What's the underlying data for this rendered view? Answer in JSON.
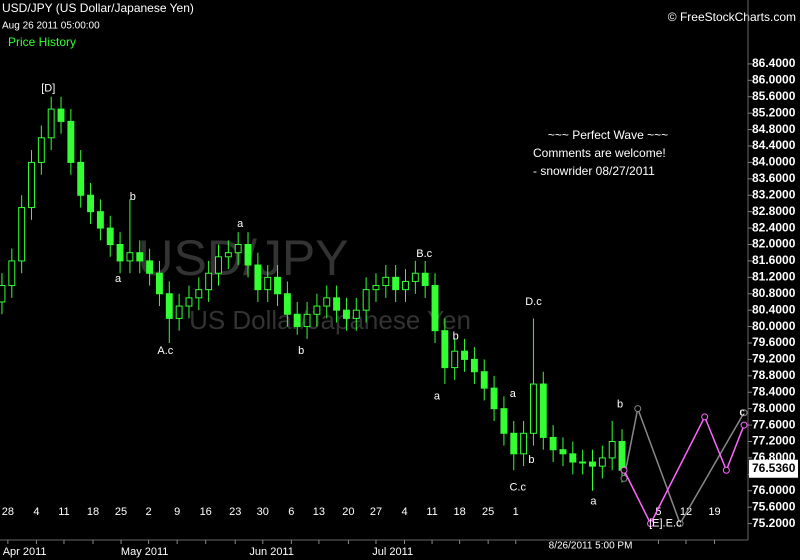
{
  "header": {
    "symbol": "USD/JPY (US Dollar/Japanese Yen)",
    "timestamp": "Aug 26 2011 05:00:00",
    "panel": "Price History",
    "brand": "© FreeStockCharts.com"
  },
  "watermark": {
    "symbol": "USD/JPY",
    "name": "US Dollar/Japanese Yen"
  },
  "comment": [
    "~~~ Perfect Wave ~~~",
    "Comments are welcome!",
    "- snowrider  08/27/2011"
  ],
  "chart_data": {
    "type": "candlestick",
    "color": "#33ff33",
    "open": [
      80.6,
      81.0,
      81.6,
      82.9,
      84.0,
      84.6,
      85.3,
      85.0,
      84.0,
      83.2,
      82.8,
      82.4,
      82.0,
      81.6,
      81.8,
      81.6,
      81.3,
      80.8,
      80.2,
      80.5,
      80.7,
      80.9,
      81.3,
      81.7,
      81.8,
      82.0,
      81.5,
      80.9,
      81.2,
      80.8,
      80.3,
      80.0,
      80.3,
      80.5,
      80.7,
      80.4,
      80.2,
      80.4,
      80.9,
      81.0,
      81.2,
      80.9,
      81.1,
      81.3,
      81.0,
      79.9,
      79.0,
      79.4,
      79.2,
      78.9,
      78.5,
      78.0,
      77.4,
      76.9,
      77.4,
      78.6,
      77.3,
      77.0,
      76.9,
      76.7,
      76.7,
      76.6,
      76.8,
      77.2
    ],
    "high": [
      81.3,
      81.9,
      83.2,
      84.3,
      84.9,
      85.6,
      85.6,
      85.3,
      84.3,
      83.5,
      83.1,
      82.7,
      82.3,
      83.1,
      82.1,
      81.9,
      81.6,
      81.1,
      80.8,
      81.0,
      81.2,
      81.6,
      82.0,
      82.1,
      82.3,
      82.3,
      81.8,
      81.5,
      81.5,
      81.1,
      80.6,
      80.6,
      80.8,
      81.0,
      81.0,
      80.7,
      80.7,
      81.2,
      81.3,
      81.5,
      81.5,
      81.4,
      81.6,
      81.6,
      81.3,
      80.2,
      79.7,
      79.7,
      79.5,
      79.2,
      78.8,
      78.3,
      77.7,
      77.7,
      80.2,
      78.9,
      77.6,
      77.3,
      77.2,
      77.0,
      77.0,
      77.1,
      77.7,
      77.5
    ],
    "low": [
      80.3,
      80.7,
      81.3,
      82.6,
      83.7,
      84.3,
      84.7,
      83.7,
      82.9,
      82.5,
      82.1,
      81.7,
      81.3,
      81.3,
      81.3,
      81.0,
      80.5,
      79.6,
      79.9,
      80.2,
      80.4,
      80.6,
      81.0,
      81.4,
      81.5,
      81.2,
      80.6,
      80.6,
      80.5,
      80.0,
      79.8,
      79.7,
      80.0,
      80.2,
      80.1,
      79.9,
      79.9,
      80.1,
      80.6,
      80.7,
      80.6,
      80.6,
      80.8,
      80.7,
      79.6,
      78.6,
      78.7,
      78.9,
      78.6,
      78.2,
      77.7,
      77.1,
      76.5,
      76.6,
      77.1,
      77.0,
      76.7,
      76.6,
      76.4,
      76.4,
      76.0,
      76.3,
      76.5,
      76.2
    ],
    "close": [
      81.0,
      81.6,
      82.9,
      84.0,
      84.6,
      85.3,
      85.0,
      84.0,
      83.2,
      82.8,
      82.4,
      82.0,
      81.6,
      81.8,
      81.6,
      81.3,
      80.8,
      80.2,
      80.5,
      80.7,
      80.9,
      81.3,
      81.7,
      81.8,
      82.0,
      81.5,
      80.9,
      81.2,
      80.8,
      80.3,
      80.0,
      80.3,
      80.5,
      80.7,
      80.4,
      80.2,
      80.4,
      80.9,
      81.0,
      81.2,
      80.9,
      81.1,
      81.3,
      81.0,
      79.9,
      79.0,
      79.4,
      79.2,
      78.9,
      78.5,
      78.0,
      77.4,
      76.9,
      77.4,
      78.6,
      77.3,
      77.0,
      76.9,
      76.7,
      76.7,
      76.6,
      76.8,
      77.2,
      76.5
    ],
    "xlim": [
      -0.2,
      75.8
    ],
    "ylim": [
      74.8,
      87.47
    ],
    "yticks": [
      {
        "value": 75.2,
        "label": "75.2000"
      },
      {
        "value": 75.6,
        "label": "75.6000"
      },
      {
        "value": 76,
        "label": "76.0000"
      },
      {
        "value": 76.4,
        "label": "76.4000"
      },
      {
        "value": 76.8,
        "label": "76.8000"
      },
      {
        "value": 77.2,
        "label": "77.2000"
      },
      {
        "value": 77.6,
        "label": "77.6000"
      },
      {
        "value": 78,
        "label": "78.0000"
      },
      {
        "value": 78.4,
        "label": "78.4000"
      },
      {
        "value": 78.8,
        "label": "78.8000"
      },
      {
        "value": 79.2,
        "label": "79.2000"
      },
      {
        "value": 79.6,
        "label": "79.6000"
      },
      {
        "value": 80,
        "label": "80.0000"
      },
      {
        "value": 80.4,
        "label": "80.4000"
      },
      {
        "value": 80.8,
        "label": "80.8000"
      },
      {
        "value": 81.2,
        "label": "81.2000"
      },
      {
        "value": 81.6,
        "label": "81.6000"
      },
      {
        "value": 82,
        "label": "82.0000"
      },
      {
        "value": 82.4,
        "label": "82.4000"
      },
      {
        "value": 82.8,
        "label": "82.8000"
      },
      {
        "value": 83.2,
        "label": "83.2000"
      },
      {
        "value": 83.6,
        "label": "83.6000"
      },
      {
        "value": 84,
        "label": "84.0000"
      },
      {
        "value": 84.4,
        "label": "84.4000"
      },
      {
        "value": 84.8,
        "label": "84.8000"
      },
      {
        "value": 85.2,
        "label": "85.2000"
      },
      {
        "value": 85.6,
        "label": "85.6000"
      },
      {
        "value": 86,
        "label": "86.0000"
      },
      {
        "value": 86.4,
        "label": "86.4000"
      }
    ],
    "xticks": [
      {
        "value": 0.6,
        "label": "28"
      },
      {
        "value": 3.5,
        "label": "4"
      },
      {
        "value": 6.3,
        "label": "11"
      },
      {
        "value": 9.25,
        "label": "18"
      },
      {
        "value": 12.1,
        "label": "25"
      },
      {
        "value": 14.9,
        "label": "2"
      },
      {
        "value": 17.8,
        "label": "9"
      },
      {
        "value": 20.7,
        "label": "16"
      },
      {
        "value": 23.7,
        "label": "23"
      },
      {
        "value": 26.5,
        "label": "30"
      },
      {
        "value": 29.4,
        "label": "6"
      },
      {
        "value": 32.2,
        "label": "13"
      },
      {
        "value": 35.2,
        "label": "20"
      },
      {
        "value": 38,
        "label": "27"
      },
      {
        "value": 40.9,
        "label": "4"
      },
      {
        "value": 43.7,
        "label": "11"
      },
      {
        "value": 46.5,
        "label": "18"
      },
      {
        "value": 49.4,
        "label": "25"
      },
      {
        "value": 52.2,
        "label": "1"
      },
      {
        "value": 66.7,
        "label": "5"
      },
      {
        "value": 69.5,
        "label": "12"
      },
      {
        "value": 72.4,
        "label": "19"
      }
    ],
    "month_labels": [
      {
        "value": 2.3,
        "label": "Apr 2011"
      },
      {
        "value": 14.5,
        "label": "May 2011"
      },
      {
        "value": 27.4,
        "label": "Jun 2011"
      },
      {
        "value": 39.7,
        "label": "Jul 2011"
      }
    ],
    "cursor_label": {
      "value": 59.8,
      "label": "8/26/2011 5:00 PM"
    },
    "last_price": {
      "value": 76.536,
      "label": "76.5360"
    },
    "annotations": [
      {
        "text": "[D]",
        "x": 4.7,
        "y": 85.8
      },
      {
        "text": "b",
        "x": 13.3,
        "y": 83.16
      },
      {
        "text": "a",
        "x": 11.8,
        "y": 81.16
      },
      {
        "text": "A.c",
        "x": 16.6,
        "y": 79.4
      },
      {
        "text": "a",
        "x": 24.2,
        "y": 82.5
      },
      {
        "text": "b",
        "x": 30.4,
        "y": 79.4
      },
      {
        "text": "B.c",
        "x": 42.9,
        "y": 81.77
      },
      {
        "text": "b",
        "x": 46.1,
        "y": 79.75
      },
      {
        "text": "a",
        "x": 44.2,
        "y": 78.3
      },
      {
        "text": "D.c",
        "x": 54,
        "y": 80.6
      },
      {
        "text": "a",
        "x": 51.9,
        "y": 78.36
      },
      {
        "text": "b",
        "x": 53.8,
        "y": 76.75
      },
      {
        "text": "C.c",
        "x": 52.4,
        "y": 76.08
      },
      {
        "text": "a",
        "x": 60.1,
        "y": 75.73
      },
      {
        "text": "b",
        "x": 62.8,
        "y": 78.1
      },
      {
        "text": "[E].E.c",
        "x": 67.4,
        "y": 75.2
      },
      {
        "text": "c",
        "x": 75.2,
        "y": 77.9
      }
    ],
    "projections": [
      {
        "color": "#888888",
        "x": [
          63.2,
          64.6,
          68.9,
          75.4
        ],
        "y": [
          76.3,
          78.0,
          75.2,
          77.9
        ]
      },
      {
        "color": "#ff66ff",
        "x": [
          63.2,
          65.9,
          71.4,
          73.6,
          75.4
        ],
        "y": [
          76.5,
          75.2,
          77.8,
          76.5,
          77.6
        ]
      }
    ]
  }
}
